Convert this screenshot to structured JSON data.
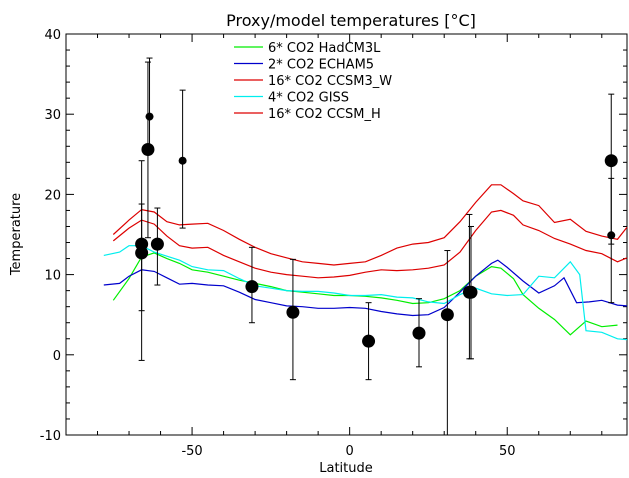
{
  "chart_data": {
    "type": "line",
    "title": "Proxy/model temperatures [°C]",
    "xlabel": "Latitude",
    "ylabel": "Temperature",
    "xlim": [
      -90,
      88
    ],
    "ylim": [
      -10,
      40
    ],
    "xticks": [
      -50,
      0,
      50
    ],
    "yticks": [
      -10,
      0,
      10,
      20,
      30,
      40
    ],
    "grid": false,
    "legend_position": "top-center",
    "series": [
      {
        "name": "6* CO2 HadCM3L",
        "color": "#00ee00",
        "x": [
          -75,
          -70,
          -66,
          -62,
          -58,
          -54,
          -50,
          -45,
          -40,
          -35,
          -30,
          -25,
          -20,
          -15,
          -10,
          -5,
          0,
          5,
          10,
          15,
          20,
          25,
          30,
          35,
          40,
          45,
          48,
          52,
          55,
          60,
          65,
          70,
          75,
          80,
          85
        ],
        "y": [
          6.8,
          9.5,
          12.2,
          12.7,
          12.0,
          11.4,
          10.6,
          10.3,
          9.8,
          9.3,
          8.9,
          8.5,
          8.0,
          7.8,
          7.6,
          7.4,
          7.4,
          7.3,
          7.1,
          6.8,
          6.4,
          6.5,
          7.0,
          8.0,
          9.8,
          11.0,
          10.8,
          9.5,
          7.5,
          5.8,
          4.4,
          2.5,
          4.2,
          3.5,
          3.7
        ]
      },
      {
        "name": "2* CO2 ECHAM5",
        "color": "#0000cc",
        "x": [
          -78,
          -73,
          -70,
          -66,
          -62,
          -58,
          -54,
          -50,
          -45,
          -40,
          -35,
          -30,
          -25,
          -20,
          -15,
          -10,
          -5,
          0,
          5,
          10,
          15,
          20,
          25,
          30,
          35,
          40,
          45,
          47,
          50,
          55,
          60,
          65,
          68,
          72,
          76,
          80,
          85,
          88
        ],
        "y": [
          8.7,
          8.9,
          9.8,
          10.6,
          10.4,
          9.6,
          8.8,
          8.9,
          8.7,
          8.6,
          7.8,
          6.9,
          6.5,
          6.1,
          6.0,
          5.8,
          5.8,
          5.9,
          5.8,
          5.4,
          5.1,
          4.9,
          5.0,
          5.9,
          7.8,
          9.8,
          11.4,
          11.8,
          10.9,
          9.2,
          7.7,
          8.6,
          9.6,
          6.5,
          6.6,
          6.8,
          6.2,
          6.1
        ]
      },
      {
        "name": "16* CO2 CCSM3_W",
        "color": "#dd0000",
        "x": [
          -75,
          -70,
          -66,
          -62,
          -58,
          -54,
          -50,
          -45,
          -40,
          -35,
          -30,
          -25,
          -20,
          -15,
          -10,
          -5,
          0,
          5,
          10,
          15,
          20,
          25,
          30,
          35,
          40,
          45,
          48,
          52,
          55,
          60,
          65,
          70,
          75,
          80,
          85,
          88
        ],
        "y": [
          14.2,
          15.8,
          16.8,
          16.3,
          14.8,
          13.6,
          13.3,
          13.4,
          12.4,
          11.6,
          10.8,
          10.3,
          10.0,
          9.8,
          9.6,
          9.7,
          9.9,
          10.3,
          10.6,
          10.5,
          10.6,
          10.8,
          11.2,
          12.8,
          15.5,
          17.8,
          18.0,
          17.4,
          16.2,
          15.5,
          14.5,
          13.8,
          13.0,
          12.6,
          11.6,
          12.1
        ]
      },
      {
        "name": "4* CO2 GISS",
        "color": "#00eeee",
        "x": [
          -78,
          -73,
          -70,
          -66,
          -62,
          -58,
          -54,
          -50,
          -45,
          -40,
          -35,
          -30,
          -25,
          -20,
          -15,
          -10,
          -5,
          0,
          5,
          10,
          15,
          20,
          25,
          30,
          35,
          40,
          45,
          50,
          55,
          60,
          65,
          70,
          73,
          75,
          80,
          85,
          88
        ],
        "y": [
          12.4,
          12.8,
          13.6,
          13.6,
          12.8,
          12.3,
          11.8,
          11.0,
          10.6,
          10.5,
          9.5,
          8.6,
          8.3,
          8.0,
          7.9,
          7.9,
          7.7,
          7.4,
          7.4,
          7.5,
          7.2,
          7.1,
          6.6,
          6.4,
          7.5,
          8.3,
          7.6,
          7.4,
          7.5,
          9.8,
          9.6,
          11.6,
          10.0,
          3.0,
          2.8,
          2.0,
          1.9
        ]
      },
      {
        "name": "16* CO2 CCSM_H",
        "color": "#dd0000",
        "x": [
          -75,
          -70,
          -66,
          -62,
          -58,
          -54,
          -50,
          -45,
          -40,
          -35,
          -30,
          -25,
          -20,
          -15,
          -10,
          -5,
          0,
          5,
          10,
          15,
          20,
          25,
          30,
          35,
          40,
          45,
          48,
          52,
          55,
          60,
          65,
          70,
          75,
          80,
          85,
          88
        ],
        "y": [
          15.0,
          16.8,
          18.1,
          17.8,
          16.6,
          16.2,
          16.3,
          16.4,
          15.5,
          14.4,
          13.4,
          12.6,
          12.1,
          11.6,
          11.4,
          11.2,
          11.4,
          11.6,
          12.4,
          13.3,
          13.8,
          14.0,
          14.6,
          16.6,
          19.0,
          21.2,
          21.2,
          20.1,
          19.2,
          18.6,
          16.5,
          16.9,
          15.4,
          14.8,
          14.4,
          15.9
        ]
      }
    ],
    "proxy_points": [
      {
        "x": -66,
        "y": 12.7,
        "err_low": -0.7,
        "err_high": 24.2,
        "size": "large"
      },
      {
        "x": -66,
        "y": 13.8,
        "err_low": 5.5,
        "err_high": 18.8,
        "size": "large"
      },
      {
        "x": -64,
        "y": 25.6,
        "err_low": 14.6,
        "err_high": 36.5,
        "size": "large"
      },
      {
        "x": -63.5,
        "y": 29.7,
        "err_low": 25.2,
        "err_high": 37.0,
        "size": "small"
      },
      {
        "x": -61,
        "y": 13.8,
        "err_low": 8.7,
        "err_high": 18.3,
        "size": "large"
      },
      {
        "x": -53,
        "y": 24.2,
        "err_low": 15.8,
        "err_high": 33.0,
        "size": "small"
      },
      {
        "x": -31,
        "y": 8.5,
        "err_low": 4.0,
        "err_high": 13.4,
        "size": "large"
      },
      {
        "x": -18,
        "y": 5.3,
        "err_low": -3.1,
        "err_high": 11.9,
        "size": "large"
      },
      {
        "x": 6,
        "y": 1.7,
        "err_low": -3.1,
        "err_high": 6.5,
        "size": "large"
      },
      {
        "x": 22,
        "y": 2.7,
        "err_low": -1.5,
        "err_high": 7.0,
        "size": "large"
      },
      {
        "x": 31,
        "y": 5.0,
        "err_low": -10.0,
        "err_high": 13.0,
        "size": "large"
      },
      {
        "x": 38,
        "y": 7.8,
        "err_low": -0.5,
        "err_high": 17.5,
        "size": "large"
      },
      {
        "x": 38.5,
        "y": 7.8,
        "err_low": -0.5,
        "err_high": 16.0,
        "size": "large"
      },
      {
        "x": 83,
        "y": 24.2,
        "err_low": 6.5,
        "err_high": 32.5,
        "size": "large"
      },
      {
        "x": 83,
        "y": 14.9,
        "err_low": 13.8,
        "err_high": 22.0,
        "size": "small"
      }
    ]
  }
}
